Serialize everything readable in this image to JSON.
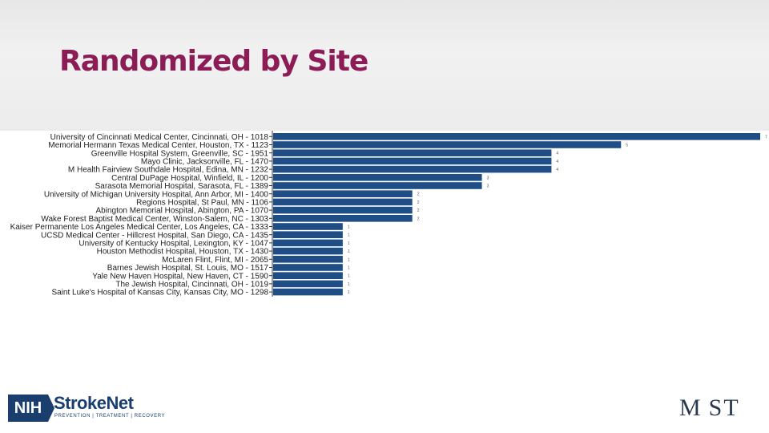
{
  "slide": {
    "title": "Randomized by Site"
  },
  "logos": {
    "nih": {
      "abbr": "NIH",
      "name": "StrokeNet",
      "tagline": "PREVENTION | TREATMENT | RECOVERY"
    },
    "most": {
      "text": "M ST"
    }
  },
  "colors": {
    "bar": "#1f4e87",
    "title": "#8c1c56"
  },
  "chart_data": {
    "type": "bar",
    "orientation": "horizontal",
    "title": "",
    "xlabel": "",
    "ylabel": "",
    "xlim": [
      0,
      7
    ],
    "grid": false,
    "categories": [
      "University of Cincinnati Medical Center, Cincinnati, OH - 1018",
      "Memorial Hermann Texas Medical Center, Houston, TX - 1123",
      "Greenville Hospital System, Greenville, SC - 1951",
      "Mayo Clinic, Jacksonville, FL - 1470",
      "M Health Fairview Southdale Hospital, Edina, MN - 1232",
      "Central DuPage Hospital, Winfield, IL - 1200",
      "Sarasota Memorial Hospital, Sarasota, FL - 1389",
      "University of Michigan University Hospital, Ann Arbor, MI - 1400",
      "Regions Hospital, St Paul, MN - 1106",
      "Abington Memorial Hospital, Abington, PA - 1070",
      "Wake Forest Baptist Medical Center, Winston-Salem, NC - 1303",
      "Kaiser Permanente Los Angeles Medical Center, Los Angeles, CA - 1333",
      "UCSD Medical Center - Hillcrest Hospital, San Diego, CA - 1435",
      "University of Kentucky Hospital, Lexington, KY - 1047",
      "Houston Methodist Hospital, Houston, TX - 1430",
      "McLaren Flint, Flint, MI - 2065",
      "Barnes Jewish Hospital, St. Louis, MO - 1517",
      "Yale New Haven Hospital, New Haven, CT - 1590",
      "The Jewish Hospital, Cincinnati, OH - 1019",
      "Saint Luke's Hospital of Kansas City, Kansas City, MO - 1298"
    ],
    "values": [
      7,
      5,
      4,
      4,
      4,
      3,
      3,
      2,
      2,
      2,
      2,
      1,
      1,
      1,
      1,
      1,
      1,
      1,
      1,
      1
    ]
  }
}
